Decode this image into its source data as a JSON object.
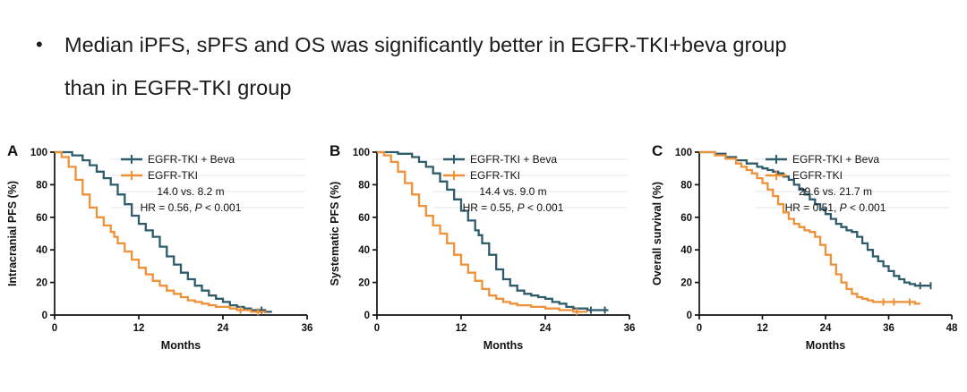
{
  "bullet": {
    "marker": "•",
    "lines": [
      "Median iPFS, sPFS and OS was significantly better in EGFR-TKI+beva group",
      "than in EGFR-TKI group"
    ]
  },
  "colors": {
    "beva": "#2e5c6b",
    "tki": "#ef9138",
    "axis": "#111111",
    "faint_rule": "#e6e6e6"
  },
  "chart_data": [
    {
      "type": "line",
      "style": "kaplan-meier-step",
      "panel_label": "A",
      "ylabel": "Intracranial PFS (%)",
      "xlabel": "Months",
      "xlim": [
        0,
        36
      ],
      "ylim": [
        0,
        100
      ],
      "xticks": [
        0,
        12,
        24,
        36
      ],
      "yticks": [
        0,
        20,
        40,
        60,
        80,
        100
      ],
      "grid": false,
      "legend_position": "top-right-inside",
      "median_text": "14.0 vs. 8.2 m",
      "medians": {
        "beva_months": 14.0,
        "tki_months": 8.2
      },
      "hr": 0.56,
      "hr_prefix": "HR = 0.56, ",
      "p_label": "P",
      "p_suffix": " < 0.001",
      "series": [
        {
          "name": "EGFR-TKI + Beva",
          "color": "#2e5c6b",
          "x": [
            0,
            2.5,
            4,
            5,
            6,
            7,
            8,
            9,
            10,
            11,
            12,
            13,
            14,
            15,
            16,
            17,
            18,
            19,
            20,
            21,
            22,
            23,
            24,
            25,
            26,
            27,
            28,
            30,
            31
          ],
          "y": [
            100,
            98,
            95,
            92,
            88,
            84,
            80,
            74,
            68,
            61,
            56,
            52,
            48,
            42,
            36,
            31,
            26,
            22,
            18,
            15,
            12,
            10,
            8,
            6,
            5,
            4,
            3,
            2,
            2
          ],
          "censors": [
            29.5
          ]
        },
        {
          "name": "EGFR-TKI",
          "color": "#ef9138",
          "x": [
            0,
            1,
            2,
            3,
            4,
            5,
            6,
            7,
            8,
            8.5,
            9,
            10,
            11,
            12,
            13,
            14,
            15,
            16,
            17,
            18,
            19,
            20,
            21,
            22,
            23,
            24,
            25,
            26,
            27,
            28,
            30
          ],
          "y": [
            100,
            97,
            91,
            83,
            74,
            66,
            60,
            55,
            51,
            48,
            44,
            39,
            34,
            29,
            25,
            21,
            18,
            15,
            13,
            11,
            9,
            8,
            7,
            6,
            5,
            5,
            4,
            3,
            3,
            2,
            1
          ],
          "censors": [
            26.5,
            29
          ]
        }
      ]
    },
    {
      "type": "line",
      "style": "kaplan-meier-step",
      "panel_label": "B",
      "ylabel": "Systematic PFS (%)",
      "xlabel": "Months",
      "xlim": [
        0,
        36
      ],
      "ylim": [
        0,
        100
      ],
      "xticks": [
        0,
        12,
        24,
        36
      ],
      "yticks": [
        0,
        20,
        40,
        60,
        80,
        100
      ],
      "grid": false,
      "legend_position": "top-right-inside",
      "median_text": "14.4 vs. 9.0 m",
      "medians": {
        "beva_months": 14.4,
        "tki_months": 9.0
      },
      "hr": 0.55,
      "hr_prefix": "HR = 0.55, ",
      "p_label": "P",
      "p_suffix": " < 0.001",
      "series": [
        {
          "name": "EGFR-TKI + Beva",
          "color": "#2e5c6b",
          "x": [
            0,
            3,
            5,
            6,
            7,
            8,
            9,
            10,
            11,
            12,
            13,
            14,
            14.5,
            15,
            16,
            17,
            18,
            19,
            20,
            21,
            22,
            23,
            24,
            25,
            26,
            27,
            28,
            30,
            33
          ],
          "y": [
            100,
            99,
            97,
            94,
            91,
            87,
            82,
            77,
            71,
            64,
            58,
            52,
            49,
            44,
            37,
            28,
            22,
            18,
            15,
            13,
            12,
            11,
            10,
            8,
            7,
            5,
            4,
            3,
            3
          ],
          "censors": [
            30.5,
            32.5
          ]
        },
        {
          "name": "EGFR-TKI",
          "color": "#ef9138",
          "x": [
            0,
            1,
            2,
            3,
            4,
            5,
            6,
            7,
            8,
            9,
            10,
            11,
            12,
            13,
            14,
            15,
            16,
            17,
            18,
            19,
            20,
            22,
            24,
            26,
            28,
            30
          ],
          "y": [
            100,
            98,
            94,
            88,
            81,
            74,
            67,
            61,
            55,
            50,
            44,
            37,
            31,
            26,
            21,
            16,
            12,
            10,
            8,
            7,
            6,
            5,
            4,
            3,
            2,
            2
          ],
          "censors": [
            28.5
          ]
        }
      ]
    },
    {
      "type": "line",
      "style": "kaplan-meier-step",
      "panel_label": "C",
      "ylabel": "Overall survival (%)",
      "xlabel": "Months",
      "xlim": [
        0,
        48
      ],
      "ylim": [
        0,
        100
      ],
      "xticks": [
        0,
        12,
        24,
        36,
        48
      ],
      "yticks": [
        0,
        20,
        40,
        60,
        80,
        100
      ],
      "grid": false,
      "legend_position": "top-right-inside",
      "median_text": "29.6 vs. 21.7 m",
      "medians": {
        "beva_months": 29.6,
        "tki_months": 21.7
      },
      "hr": 0.51,
      "hr_prefix": "HR = 0.51, ",
      "p_label": "P",
      "p_suffix": " < 0.001",
      "series": [
        {
          "name": "EGFR-TKI + Beva",
          "color": "#2e5c6b",
          "x": [
            0,
            3,
            5,
            7,
            9,
            11,
            12,
            13,
            14,
            15,
            16,
            17,
            18,
            19,
            20,
            21,
            22,
            23,
            24,
            25,
            26,
            27,
            28,
            29,
            30,
            31,
            32,
            33,
            34,
            35,
            36,
            37,
            38,
            39,
            40,
            41,
            44
          ],
          "y": [
            100,
            99,
            97,
            95,
            93,
            91,
            90,
            89,
            88,
            87,
            85,
            83,
            80,
            77,
            74,
            71,
            68,
            65,
            62,
            59,
            56,
            54,
            52,
            51,
            48,
            44,
            40,
            36,
            33,
            30,
            27,
            24,
            22,
            20,
            19,
            18,
            18
          ],
          "censors": [
            42,
            44
          ]
        },
        {
          "name": "EGFR-TKI",
          "color": "#ef9138",
          "x": [
            0,
            3,
            5,
            7,
            8,
            9,
            10,
            11,
            12,
            13,
            14,
            15,
            16,
            17,
            18,
            19,
            20,
            21,
            22,
            23,
            24,
            25,
            26,
            27,
            28,
            29,
            30,
            31,
            32,
            33,
            35,
            38,
            41,
            42
          ],
          "y": [
            100,
            98,
            96,
            93,
            91,
            89,
            87,
            84,
            81,
            77,
            73,
            68,
            63,
            59,
            56,
            54,
            52,
            51,
            48,
            43,
            37,
            31,
            25,
            20,
            16,
            13,
            11,
            10,
            9,
            8,
            8,
            8,
            7,
            7
          ],
          "censors": [
            35,
            37,
            40
          ]
        }
      ]
    }
  ]
}
